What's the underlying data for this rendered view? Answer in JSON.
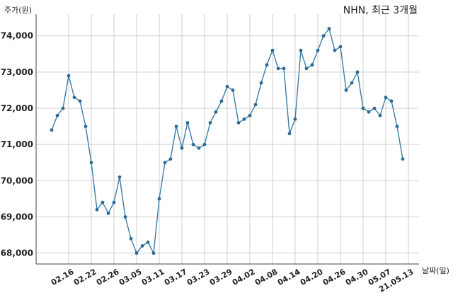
{
  "chart_data": {
    "type": "line",
    "title": "NHN, 최근 3개월",
    "ylabel": "주가(원)",
    "xlabel": "날짜(일)",
    "ylim": [
      67700,
      74600
    ],
    "grid": true,
    "colors": {
      "line": "#3a7ca8",
      "marker": "#2b6a94"
    },
    "x_ticks": [
      "02.16",
      "02.22",
      "02.26",
      "03.05",
      "03.11",
      "03.17",
      "03.23",
      "03.29",
      "04.02",
      "04.08",
      "04.14",
      "04.20",
      "04.26",
      "04.30",
      "05.07",
      "21.05.13"
    ],
    "x_tick_index": [
      3,
      7,
      11,
      15,
      19,
      23,
      27,
      31,
      35,
      39,
      43,
      47,
      51,
      55,
      59,
      63
    ],
    "y_ticks": [
      {
        "value": 68000,
        "label": "68,000"
      },
      {
        "value": 69000,
        "label": "69,000"
      },
      {
        "value": 70000,
        "label": "70,000"
      },
      {
        "value": 71000,
        "label": "71,000"
      },
      {
        "value": 72000,
        "label": "72,000"
      },
      {
        "value": 73000,
        "label": "73,000"
      },
      {
        "value": 74000,
        "label": "74,000"
      }
    ],
    "series": [
      {
        "values": [
          71400,
          71800,
          72000,
          72900,
          72300,
          72200,
          71500,
          70500,
          69200,
          69400,
          69100,
          69400,
          70100,
          69000,
          68400,
          68000,
          68200,
          68300,
          68000,
          69500,
          70500,
          70600,
          71500,
          70900,
          71600,
          71000,
          70900,
          71000,
          71600,
          71900,
          72200,
          72600,
          72500,
          71600,
          71700,
          71800,
          72100,
          72700,
          73200,
          73600,
          73100,
          73100,
          71300,
          71700,
          73600,
          73100,
          73200,
          73600,
          74000,
          74200,
          73600,
          73700,
          72500,
          72700,
          73000,
          72000,
          71900,
          72000,
          71800,
          72300,
          72200,
          71500,
          70600
        ]
      }
    ]
  }
}
